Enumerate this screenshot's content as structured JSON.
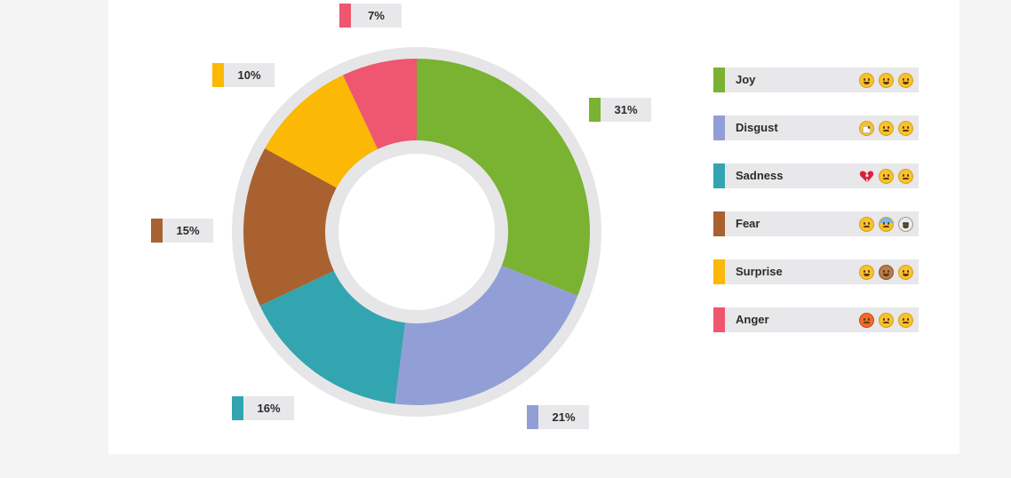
{
  "chart_data": {
    "type": "pie",
    "donut": true,
    "title": "",
    "slices": [
      {
        "label": "Joy",
        "value": 31,
        "label_text": "31%",
        "color": "#7ab232"
      },
      {
        "label": "Disgust",
        "value": 21,
        "label_text": "21%",
        "color": "#929fd6"
      },
      {
        "label": "Sadness",
        "value": 16,
        "label_text": "16%",
        "color": "#33a5b0"
      },
      {
        "label": "Fear",
        "value": 15,
        "label_text": "15%",
        "color": "#a9612f"
      },
      {
        "label": "Surprise",
        "value": 10,
        "label_text": "10%",
        "color": "#fbb805"
      },
      {
        "label": "Anger",
        "value": 7,
        "label_text": "7%",
        "color": "#ef5670"
      }
    ],
    "legend_position": "right"
  },
  "legend": [
    {
      "name": "Joy",
      "color": "#7ab232",
      "icons": [
        "grinning-face-icon",
        "grimacing-face-icon",
        "smiling-face-icon"
      ]
    },
    {
      "name": "Disgust",
      "color": "#929fd6",
      "icons": [
        "medical-mask-face-icon",
        "confounded-face-icon",
        "tired-face-icon"
      ]
    },
    {
      "name": "Sadness",
      "color": "#33a5b0",
      "icons": [
        "broken-heart-icon",
        "slightly-frowning-face-icon",
        "crying-face-icon"
      ]
    },
    {
      "name": "Fear",
      "color": "#a9612f",
      "icons": [
        "worried-face-icon",
        "fearful-face-icon",
        "skull-icon"
      ]
    },
    {
      "name": "Surprise",
      "color": "#fbb805",
      "icons": [
        "flushed-face-icon",
        "speak-no-evil-monkey-icon",
        "sweat-smile-face-icon"
      ]
    },
    {
      "name": "Anger",
      "color": "#ef5670",
      "icons": [
        "angry-face-icon",
        "steam-from-nose-face-icon",
        "persevering-face-icon"
      ]
    }
  ],
  "colors": {
    "ring": "#e6e6e8",
    "label_bg": "#e8e8ea",
    "background": "#f4f4f5",
    "card": "#ffffff"
  }
}
